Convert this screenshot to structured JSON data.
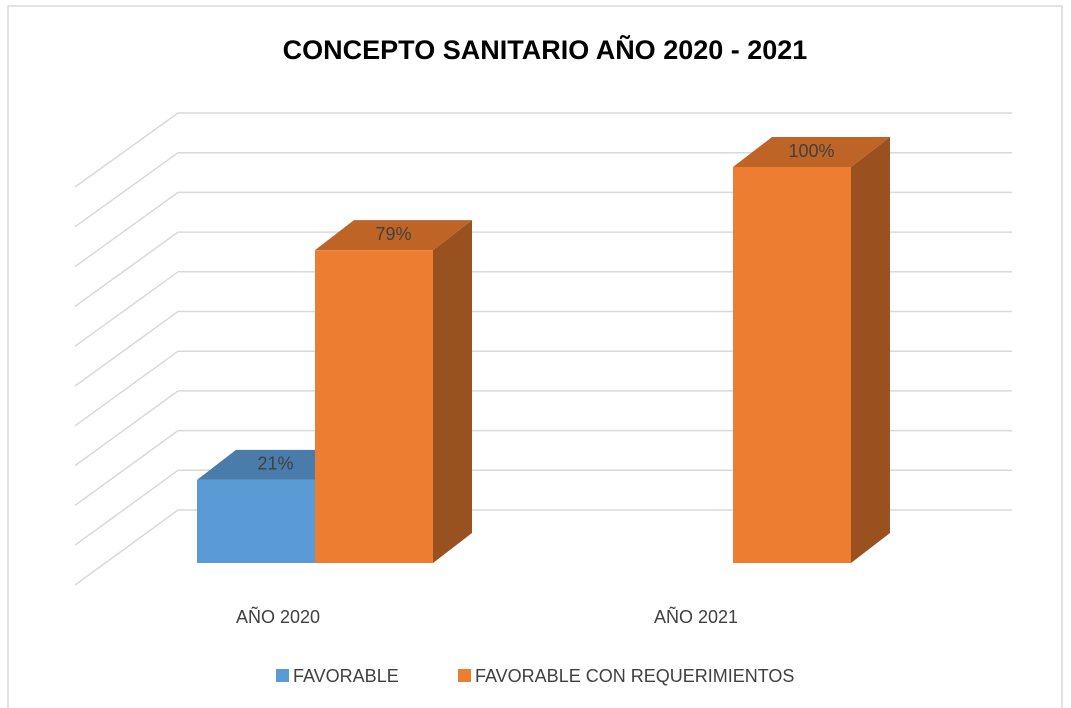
{
  "chart_data": {
    "type": "bar3d",
    "title": "CONCEPTO SANITARIO AÑO 2020 - 2021",
    "categories": [
      "AÑO 2020",
      "AÑO 2021"
    ],
    "series": [
      {
        "name": "FAVORABLE",
        "color": "#5b9bd5",
        "values": [
          21,
          null
        ],
        "value_labels": [
          "21%",
          null
        ]
      },
      {
        "name": "FAVORABLE CON REQUERIMIENTOS",
        "color": "#ed7d31",
        "values": [
          79,
          100
        ],
        "value_labels": [
          "79%",
          "100%"
        ]
      }
    ],
    "ylim": [
      0,
      100
    ],
    "yticks": [
      0,
      10,
      20,
      30,
      40,
      50,
      60,
      70,
      80,
      90,
      100
    ],
    "grid": true,
    "legend": "bottom"
  }
}
